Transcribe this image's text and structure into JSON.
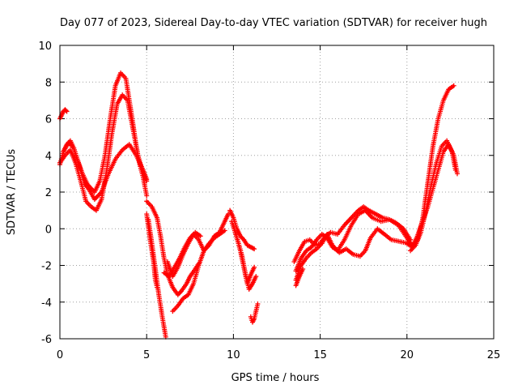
{
  "chart_data": {
    "type": "scatter",
    "title": "Day 077 of 2023, Sidereal Day-to-day VTEC variation (SDTVAR) for receiver hugh",
    "xlabel": "GPS time / hours",
    "ylabel": "SDTVAR / TECUs",
    "xlim": [
      0,
      25
    ],
    "ylim": [
      -6,
      10
    ],
    "x_ticks": [
      "0",
      "5",
      "10",
      "15",
      "20",
      "25"
    ],
    "y_ticks": [
      "-6",
      "-4",
      "-2",
      "0",
      "2",
      "4",
      "6",
      "8",
      "10"
    ],
    "grid": true,
    "marker": "+",
    "color": "#ff0000",
    "series": [
      {
        "x": [
          0,
          0.2,
          0.4,
          0.6,
          0.8,
          1.0,
          1.3,
          1.6,
          2.0,
          2.3,
          2.6,
          2.9,
          3.2,
          3.5,
          3.8,
          4.0,
          4.2,
          4.4,
          4.6,
          4.8,
          5.0
        ],
        "values": [
          3.5,
          4.2,
          4.6,
          4.8,
          4.4,
          3.8,
          3.0,
          2.4,
          2.0,
          2.6,
          4.0,
          6.0,
          7.8,
          8.5,
          8.2,
          7.0,
          5.8,
          4.5,
          3.5,
          2.8,
          1.8
        ]
      },
      {
        "x": [
          0,
          0.3,
          0.6,
          0.9,
          1.2,
          1.5,
          1.8,
          2.1,
          2.4,
          2.7,
          3.0,
          3.3,
          3.6,
          3.9,
          4.2,
          4.5,
          4.8,
          5.0
        ],
        "values": [
          3.6,
          4.0,
          4.3,
          3.6,
          2.6,
          1.5,
          1.2,
          1.0,
          1.6,
          3.2,
          5.2,
          6.8,
          7.3,
          7.0,
          5.5,
          4.0,
          3.0,
          2.6
        ]
      },
      {
        "x": [
          0.2,
          0.5,
          0.8,
          1.1,
          1.4,
          1.7,
          2.0,
          2.4,
          2.8,
          3.2,
          3.6,
          4.0,
          4.4,
          4.8,
          5.0
        ],
        "values": [
          4.2,
          4.7,
          4.4,
          3.5,
          2.5,
          2.1,
          1.6,
          2.0,
          3.0,
          3.8,
          4.3,
          4.6,
          4.0,
          3.2,
          2.7
        ]
      },
      {
        "x": [
          0.0,
          0.1,
          0.2,
          0.3,
          0.4
        ],
        "values": [
          6.0,
          6.2,
          6.4,
          6.5,
          6.4
        ]
      },
      {
        "x": [
          5.0,
          5.3,
          5.6,
          5.8,
          6.0,
          6.2,
          6.5,
          6.8,
          7.0,
          7.3,
          7.5,
          7.8,
          8.0
        ],
        "values": [
          1.5,
          1.2,
          0.6,
          -0.4,
          -1.6,
          -2.5,
          -3.2,
          -3.6,
          -3.4,
          -3.0,
          -2.6,
          -2.2,
          -1.9
        ]
      },
      {
        "x": [
          5.1,
          5.3,
          5.5,
          5.7,
          5.9,
          6.1
        ],
        "values": [
          0.5,
          -0.8,
          -2.2,
          -3.6,
          -4.8,
          -5.9
        ]
      },
      {
        "x": [
          5.0,
          5.2,
          5.4,
          5.5,
          5.6
        ],
        "values": [
          0.8,
          -0.6,
          -1.8,
          -2.8,
          -3.2
        ]
      },
      {
        "x": [
          6.2,
          6.5,
          6.8,
          7.1,
          7.4,
          7.7,
          8.0,
          8.3,
          8.6,
          8.9,
          9.2,
          9.5,
          9.7
        ],
        "values": [
          -1.8,
          -2.6,
          -2.1,
          -1.4,
          -0.8,
          -0.3,
          -0.6,
          -1.2,
          -0.9,
          -0.4,
          -0.2,
          0.4,
          0.8
        ]
      },
      {
        "x": [
          6.5,
          6.8,
          7.1,
          7.4,
          7.7,
          8.0,
          8.3,
          8.6,
          8.9,
          9.2,
          9.5
        ],
        "values": [
          -4.5,
          -4.2,
          -3.8,
          -3.6,
          -3.0,
          -2.0,
          -1.2,
          -0.8,
          -0.5,
          -0.3,
          -0.1
        ]
      },
      {
        "x": [
          6.0,
          6.3,
          6.6,
          6.9,
          7.2,
          7.5,
          7.8,
          8.1
        ],
        "values": [
          -2.4,
          -2.6,
          -2.1,
          -1.6,
          -1.0,
          -0.5,
          -0.2,
          -0.4
        ]
      },
      {
        "x": [
          9.8,
          10.0,
          10.2,
          10.4,
          10.6,
          10.8,
          11.0,
          11.2
        ],
        "values": [
          1.0,
          0.6,
          0.0,
          -0.4,
          -0.6,
          -0.9,
          -1.0,
          -1.1
        ]
      },
      {
        "x": [
          9.9,
          10.1,
          10.3,
          10.5,
          10.7,
          10.9,
          11.1,
          11.3
        ],
        "values": [
          0.4,
          -0.2,
          -0.8,
          -1.5,
          -2.5,
          -3.3,
          -3.0,
          -2.6
        ]
      },
      {
        "x": [
          10.0,
          10.2,
          10.4,
          10.6,
          10.8,
          11.0,
          11.2
        ],
        "values": [
          0.2,
          -0.5,
          -1.2,
          -2.1,
          -3.0,
          -2.5,
          -2.1
        ]
      },
      {
        "x": [
          11.0,
          11.1,
          11.2,
          11.3,
          11.4
        ],
        "values": [
          -4.8,
          -5.1,
          -4.9,
          -4.5,
          -4.1
        ]
      },
      {
        "x": [
          13.5,
          13.8,
          14.1,
          14.4,
          14.7,
          15.0,
          15.3,
          15.6,
          16.0,
          16.4,
          16.8,
          17.2,
          17.5,
          17.8,
          18.2,
          18.6,
          19.0,
          19.4,
          19.8,
          20.2
        ],
        "values": [
          -1.8,
          -1.2,
          -0.7,
          -0.6,
          -0.9,
          -0.8,
          -0.4,
          -0.2,
          -0.3,
          0.2,
          0.6,
          1.0,
          1.2,
          1.0,
          0.8,
          0.6,
          0.5,
          0.3,
          0.0,
          -0.6
        ]
      },
      {
        "x": [
          13.6,
          13.9,
          14.2,
          14.5,
          14.8,
          15.1,
          15.4,
          15.7,
          16.0,
          16.4,
          16.8,
          17.2,
          17.6,
          18.0,
          18.5,
          19.0,
          19.5,
          20.0,
          20.3
        ],
        "values": [
          -2.3,
          -1.6,
          -1.2,
          -1.0,
          -0.6,
          -0.3,
          -0.5,
          -1.0,
          -1.2,
          -0.6,
          0.2,
          0.8,
          1.0,
          0.6,
          0.4,
          0.5,
          0.2,
          -0.5,
          -0.9
        ]
      },
      {
        "x": [
          13.6,
          13.9,
          14.2,
          14.5,
          14.8,
          15.1,
          15.4,
          15.7,
          16.1,
          16.5,
          16.9,
          17.3,
          17.6,
          17.9,
          18.3,
          18.7,
          19.1,
          19.6,
          20.1
        ],
        "values": [
          -2.8,
          -2.0,
          -1.6,
          -1.3,
          -1.1,
          -0.8,
          -0.3,
          -0.9,
          -1.3,
          -1.1,
          -1.4,
          -1.5,
          -1.2,
          -0.5,
          0.0,
          -0.3,
          -0.6,
          -0.7,
          -0.8
        ]
      },
      {
        "x": [
          13.6,
          13.8,
          14.0
        ],
        "values": [
          -3.1,
          -2.6,
          -2.2
        ]
      },
      {
        "x": [
          20.0,
          20.3,
          20.6,
          20.9,
          21.2,
          21.5,
          21.8,
          22.1,
          22.4,
          22.7
        ],
        "values": [
          -0.8,
          -1.0,
          -0.6,
          0.5,
          2.5,
          4.5,
          6.0,
          7.0,
          7.6,
          7.8
        ]
      },
      {
        "x": [
          20.2,
          20.5,
          20.8,
          21.1,
          21.4,
          21.7,
          22.0,
          22.3,
          22.6,
          22.8
        ],
        "values": [
          -1.2,
          -0.9,
          -0.2,
          1.0,
          2.4,
          3.6,
          4.5,
          4.8,
          4.2,
          3.2
        ]
      },
      {
        "x": [
          20.3,
          20.6,
          20.9,
          21.2,
          21.5,
          21.8,
          22.1,
          22.4,
          22.7,
          22.9
        ],
        "values": [
          -1.0,
          -0.4,
          0.4,
          1.2,
          2.2,
          3.2,
          4.2,
          4.6,
          4.0,
          3.0
        ]
      }
    ]
  }
}
